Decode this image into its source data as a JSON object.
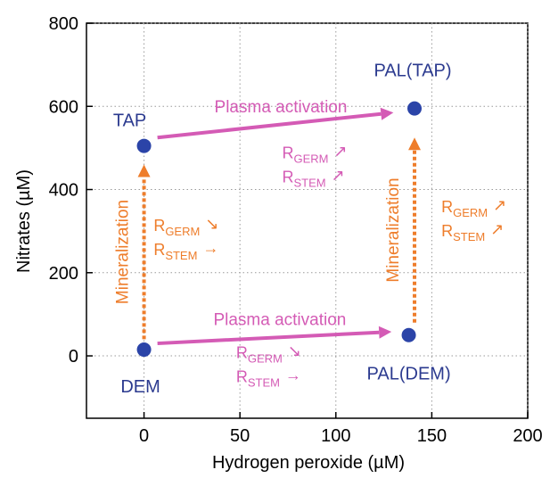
{
  "chart_data": {
    "type": "scatter",
    "title": "",
    "xlabel": "Hydrogen peroxide (µM)",
    "ylabel": "Nitrates (µM)",
    "xlim": [
      -30,
      200
    ],
    "ylim": [
      -150,
      800
    ],
    "xticks": [
      0,
      50,
      100,
      150,
      200
    ],
    "yticks": [
      0,
      200,
      400,
      600,
      800
    ],
    "grid": "dotted",
    "points": [
      {
        "label": "DEM",
        "x": 0,
        "y": 15
      },
      {
        "label": "TAP",
        "x": 0,
        "y": 505
      },
      {
        "label": "PAL(DEM)",
        "x": 138,
        "y": 50
      },
      {
        "label": "PAL(TAP)",
        "x": 141,
        "y": 595
      }
    ],
    "arrows": [
      {
        "label": "Plasma activation",
        "from": [
          7,
          525
        ],
        "to": [
          130,
          585
        ],
        "color": "#d45bb5",
        "style": "solid"
      },
      {
        "label": "Plasma activation",
        "from": [
          7,
          30
        ],
        "to": [
          129,
          58
        ],
        "color": "#d45bb5",
        "style": "solid"
      },
      {
        "label": "Mineralization",
        "from": [
          0,
          40
        ],
        "to": [
          0,
          460
        ],
        "color": "#ee7d2b",
        "style": "dotted"
      },
      {
        "label": "Mineralization",
        "from": [
          141,
          80
        ],
        "to": [
          141,
          525
        ],
        "color": "#ee7d2b",
        "style": "dotted"
      }
    ],
    "annotations": [
      {
        "lines": [
          "R_GERM ↗",
          "R_STEM ↗"
        ],
        "x": 72,
        "y": 475,
        "color": "#d45bb5"
      },
      {
        "lines": [
          "R_GERM ↘",
          "R_STEM →"
        ],
        "x": 5,
        "y": 300,
        "color": "#ee7d2b"
      },
      {
        "lines": [
          "R_GERM ↗",
          "R_STEM ↗"
        ],
        "x": 155,
        "y": 345,
        "color": "#ee7d2b"
      },
      {
        "lines": [
          "R_GERM ↘",
          "R_STEM →"
        ],
        "x": 48,
        "y": -5,
        "color": "#d45bb5"
      }
    ],
    "colors": {
      "point": "#2b44a8",
      "point_label": "#2b3a8f",
      "plasma": "#d45bb5",
      "mineral": "#ee7d2b",
      "axis": "#000000",
      "grid": "#9a9a9a"
    }
  }
}
